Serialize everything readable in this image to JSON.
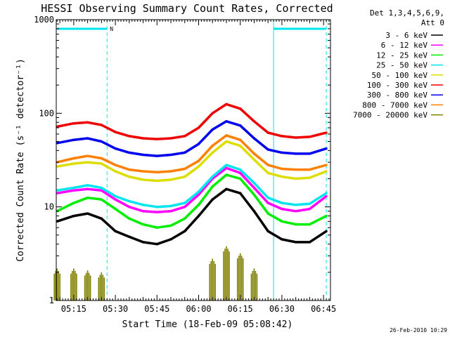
{
  "chart_data": {
    "type": "line",
    "title": "HESSI Observing Summary Count Rates, Corrected",
    "xlabel": "Start Time (18-Feb-09 05:08:42)",
    "ylabel": "Corrected Count Rate (s⁻¹ detector⁻¹)",
    "y_scale": "log",
    "ylim": [
      1,
      1000
    ],
    "yticks": [
      "1",
      "10",
      "100",
      "1000"
    ],
    "xlim": [
      "05:08:42",
      "06:47:30"
    ],
    "xticks": [
      "05:15",
      "05:30",
      "05:45",
      "06:00",
      "06:15",
      "06:30",
      "06:45"
    ],
    "x": [
      "05:09",
      "05:15",
      "05:20",
      "05:25",
      "05:30",
      "05:35",
      "05:40",
      "05:45",
      "05:50",
      "05:55",
      "06:00",
      "06:05",
      "06:10",
      "06:15",
      "06:20",
      "06:25",
      "06:30",
      "06:35",
      "06:40",
      "06:46"
    ],
    "legend": {
      "header": [
        "Det 1,3,4,5,6,9,",
        "Att 0"
      ],
      "placement": "top-right, outside plot"
    },
    "series": [
      {
        "name": "3 - 6 keV",
        "color": "#000000",
        "values": [
          7,
          8,
          8.5,
          7.5,
          5.5,
          4.8,
          4.2,
          4,
          4.5,
          5.5,
          8,
          12,
          15.5,
          14,
          9,
          5.5,
          4.5,
          4.2,
          4.2,
          5.5
        ]
      },
      {
        "name": "6 - 12 keV",
        "color": "#ff00ff",
        "values": [
          14,
          15,
          15.5,
          15,
          12,
          10,
          9,
          8.8,
          9,
          10,
          13.5,
          20,
          26,
          23,
          16,
          11,
          9.5,
          9,
          9.5,
          13
        ]
      },
      {
        "name": "12 - 25 keV",
        "color": "#00ee00",
        "values": [
          9,
          11,
          12.5,
          12,
          9.5,
          7.5,
          6.5,
          6,
          6.3,
          7.5,
          10.5,
          16.5,
          22,
          20,
          13.5,
          8.5,
          7,
          6.5,
          6.5,
          8
        ]
      },
      {
        "name": "25 - 50 keV",
        "color": "#00e5ee",
        "values": [
          15,
          16,
          17,
          16,
          13,
          11.5,
          10.5,
          10,
          10.2,
          11,
          14.5,
          21,
          28,
          25,
          18,
          12.5,
          11,
          10.5,
          10.8,
          14
        ]
      },
      {
        "name": "50 - 100 keV",
        "color": "#dddd00",
        "values": [
          27,
          29,
          30,
          29,
          24,
          21,
          19.5,
          19,
          19.5,
          21,
          27,
          38,
          50,
          45,
          32,
          23,
          21,
          20,
          20.5,
          24
        ]
      },
      {
        "name": "100 - 300 keV",
        "color": "#ee0000",
        "values": [
          72,
          78,
          80,
          75,
          63,
          57,
          54,
          53,
          54,
          57,
          70,
          100,
          125,
          112,
          82,
          62,
          57,
          55,
          56,
          62
        ]
      },
      {
        "name": "300 - 800 keV",
        "color": "#0000ee",
        "values": [
          48,
          52,
          54,
          50,
          42,
          38,
          36,
          35,
          36,
          38,
          47,
          67,
          82,
          74,
          54,
          41,
          38,
          37,
          37,
          42
        ]
      },
      {
        "name": "800 - 7000 keV",
        "color": "#ff8000",
        "values": [
          30,
          33,
          35,
          33,
          28,
          25,
          24,
          23.5,
          24,
          25.5,
          31,
          45,
          58,
          52,
          37,
          28,
          25.5,
          25,
          25,
          28
        ]
      },
      {
        "name": "7000 - 20000 keV",
        "color": "#808000",
        "values": [
          2.2,
          2.2,
          2.1,
          2.0,
          0,
          0,
          0,
          0,
          0,
          0,
          0,
          2.8,
          3.8,
          3.2,
          2.2,
          0,
          0,
          0,
          0,
          0
        ]
      }
    ],
    "annotations": {
      "top_bar_label": "N",
      "timestamp": "26-Feb-2010 10:29"
    }
  }
}
